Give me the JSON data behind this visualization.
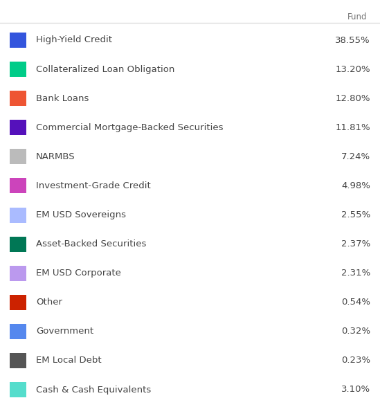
{
  "header": "Fund",
  "rows": [
    {
      "label": "High-Yield Credit",
      "value": "38.55%",
      "color": "#3355dd"
    },
    {
      "label": "Collateralized Loan Obligation",
      "value": "13.20%",
      "color": "#00cc88"
    },
    {
      "label": "Bank Loans",
      "value": "12.80%",
      "color": "#ee5533"
    },
    {
      "label": "Commercial Mortgage-Backed Securities",
      "value": "11.81%",
      "color": "#5511bb"
    },
    {
      "label": "NARMBS",
      "value": "7.24%",
      "color": "#bbbbbb"
    },
    {
      "label": "Investment-Grade Credit",
      "value": "4.98%",
      "color": "#cc44bb"
    },
    {
      "label": "EM USD Sovereigns",
      "value": "2.55%",
      "color": "#aabbff"
    },
    {
      "label": "Asset-Backed Securities",
      "value": "2.37%",
      "color": "#007755"
    },
    {
      "label": "EM USD Corporate",
      "value": "2.31%",
      "color": "#bb99ee"
    },
    {
      "label": "Other",
      "value": "0.54%",
      "color": "#cc2200"
    },
    {
      "label": "Government",
      "value": "0.32%",
      "color": "#5588ee"
    },
    {
      "label": "EM Local Debt",
      "value": "0.23%",
      "color": "#555555"
    },
    {
      "label": "Cash & Cash Equivalents",
      "value": "3.10%",
      "color": "#55ddcc"
    }
  ],
  "bg_color": "#ffffff",
  "text_color": "#444444",
  "header_color": "#777777",
  "label_fontsize": 9.5,
  "value_fontsize": 9.5,
  "header_fontsize": 8.5,
  "top_line_color": "#dddddd",
  "fig_width": 5.49,
  "fig_height": 5.88,
  "dpi": 100
}
